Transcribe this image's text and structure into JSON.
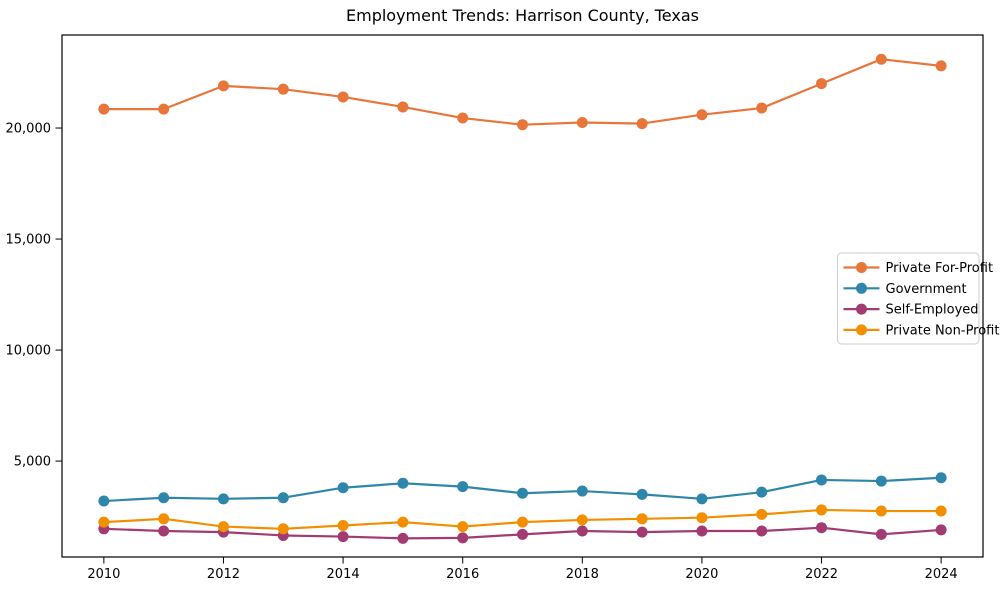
{
  "chart_data": {
    "type": "line",
    "title": "Employment Trends: Harrison County, Texas",
    "xlabel": "",
    "ylabel": "",
    "x": [
      2010,
      2011,
      2012,
      2013,
      2014,
      2015,
      2016,
      2017,
      2018,
      2019,
      2020,
      2021,
      2022,
      2023,
      2024
    ],
    "xlim": [
      2009.3,
      2024.7
    ],
    "ylim": [
      680,
      24190
    ],
    "grid": false,
    "legend_position": "center right",
    "xticks": [
      {
        "value": 2010,
        "label": "2010"
      },
      {
        "value": 2012,
        "label": "2012"
      },
      {
        "value": 2014,
        "label": "2014"
      },
      {
        "value": 2016,
        "label": "2016"
      },
      {
        "value": 2018,
        "label": "2018"
      },
      {
        "value": 2020,
        "label": "2020"
      },
      {
        "value": 2022,
        "label": "2022"
      },
      {
        "value": 2024,
        "label": "2024"
      }
    ],
    "yticks": [
      {
        "value": 5000,
        "label": "5,000"
      },
      {
        "value": 10000,
        "label": "10,000"
      },
      {
        "value": 15000,
        "label": "15,000"
      },
      {
        "value": 20000,
        "label": "20,000"
      }
    ],
    "series": [
      {
        "name": "Private For-Profit",
        "color": "#E8763B",
        "values": [
          20850,
          20850,
          21900,
          21750,
          21400,
          20950,
          20450,
          20150,
          20250,
          20200,
          20600,
          20900,
          22000,
          23100,
          22800
        ]
      },
      {
        "name": "Government",
        "color": "#2E86AB",
        "values": [
          3200,
          3350,
          3300,
          3350,
          3800,
          4000,
          3850,
          3550,
          3650,
          3500,
          3300,
          3600,
          4150,
          4100,
          4250
        ]
      },
      {
        "name": "Self-Employed",
        "color": "#A23B72",
        "values": [
          1950,
          1850,
          1800,
          1650,
          1600,
          1520,
          1540,
          1700,
          1850,
          1800,
          1850,
          1850,
          2000,
          1700,
          1900
        ]
      },
      {
        "name": "Private Non-Profit",
        "color": "#F18F01",
        "values": [
          2250,
          2400,
          2050,
          1950,
          2100,
          2250,
          2050,
          2250,
          2350,
          2400,
          2450,
          2600,
          2800,
          2750,
          2750
        ]
      }
    ]
  },
  "figure": {
    "background": "#ffffff",
    "frame_color": "#000000",
    "text_color": "#000000",
    "legend_border_color": "#cccccc"
  }
}
